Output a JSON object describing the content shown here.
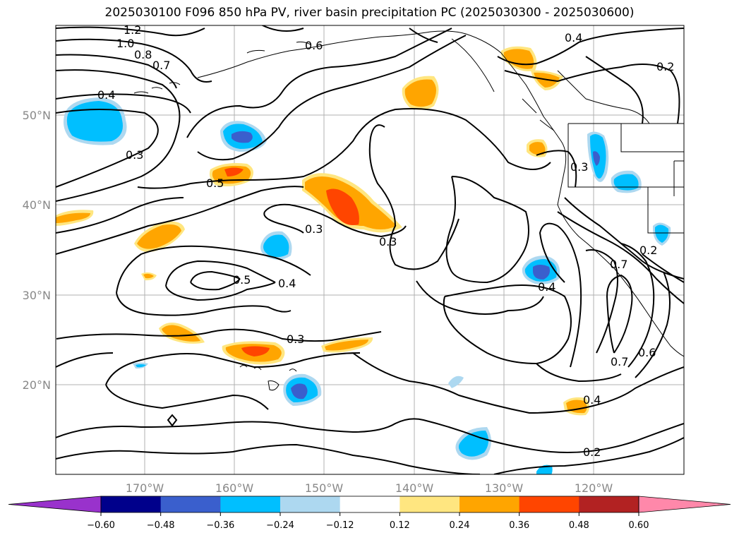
{
  "title": "2025030100 F096 850 hPa PV, river basin precipitation PC (2025030300 - 2025030600)",
  "lat_labels": [
    "50°N",
    "40°N",
    "30°N",
    "20°N"
  ],
  "lon_labels": [
    "170°W",
    "160°W",
    "150°W",
    "140°W",
    "130°W",
    "120°W"
  ],
  "contour_labels": [
    "1.2",
    "1.0",
    "0.8",
    "0.7",
    "0.6",
    "0.4",
    "0.2",
    "0.4",
    "0.3",
    "0.5",
    "0.3",
    "0.3",
    "0.5",
    "0.4",
    "0.3",
    "0.3",
    "0.4",
    "0.7",
    "0.6",
    "0.7",
    "0.2",
    "0.4",
    "0.2"
  ],
  "colorbar": {
    "ticks": [
      "−0.60",
      "−0.48",
      "−0.36",
      "−0.24",
      "−0.12",
      "0.12",
      "0.24",
      "0.36",
      "0.48",
      "0.60"
    ],
    "colors": [
      "#9932cc",
      "#00008b",
      "#3a5fcd",
      "#00bfff",
      "#add8f0",
      "#ffffff",
      "#ffe680",
      "#ffa500",
      "#ff4500",
      "#b22222",
      "#ff88aa"
    ]
  },
  "chart_data": {
    "type": "heatmap",
    "title": "2025030100 F096 850 hPa PV, river basin precipitation PC (2025030300 - 2025030600)",
    "region": {
      "lon_range": [
        "180°W",
        "110°W"
      ],
      "lat_range": [
        "10°N",
        "60°N"
      ]
    },
    "contour_field": "850 hPa PV",
    "contour_levels": [
      0.2,
      0.3,
      0.4,
      0.5,
      0.6,
      0.7,
      0.8,
      1.0,
      1.2
    ],
    "shaded_field": "river basin precipitation PC",
    "colorbar_levels": [
      -0.6,
      -0.48,
      -0.36,
      -0.24,
      -0.12,
      0.12,
      0.24,
      0.36,
      0.48,
      0.6
    ],
    "grid": true
  }
}
